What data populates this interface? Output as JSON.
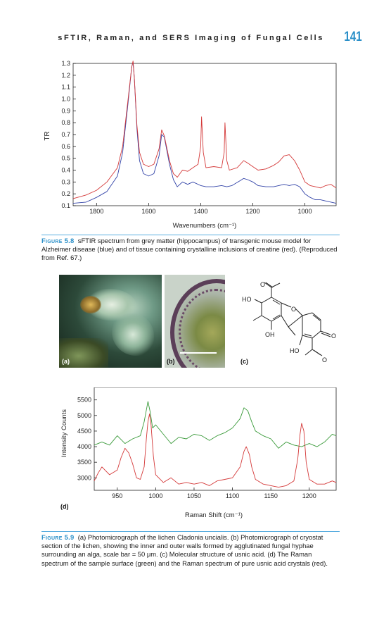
{
  "header": {
    "running_title": "sFTIR, Raman, and SERS Imaging of Fungal Cells",
    "page_number": "141"
  },
  "figure_5_8": {
    "caption_label": "Figure 5.8",
    "caption_text": "sFTIR spectrum from grey matter (hippocampus) of transgenic mouse model for Alzheimer disease (blue) and of tissue containing crystalline inclusions of creatine (red). (Reproduced from Ref. 67.)",
    "chart_data": {
      "type": "line",
      "xlabel": "Wavenumbers (cm⁻¹)",
      "ylabel": "TR",
      "xlim": [
        1890,
        880
      ],
      "ylim": [
        0.1,
        1.3
      ],
      "x_ticks": [
        "1800",
        "1600",
        "1400",
        "1200",
        "1000"
      ],
      "y_ticks": [
        "0.1",
        "0.2",
        "0.3",
        "0.4",
        "0.5",
        "0.6",
        "0.7",
        "0.8",
        "0.9",
        "1.0",
        "1.1",
        "1.2",
        "1.3"
      ],
      "series": [
        {
          "color": "#3344a8",
          "x": [
            1890,
            1840,
            1800,
            1760,
            1720,
            1700,
            1680,
            1665,
            1660,
            1655,
            1645,
            1635,
            1620,
            1600,
            1580,
            1560,
            1550,
            1540,
            1520,
            1505,
            1490,
            1470,
            1450,
            1430,
            1400,
            1380,
            1350,
            1320,
            1300,
            1280,
            1250,
            1235,
            1220,
            1200,
            1180,
            1150,
            1120,
            1100,
            1080,
            1060,
            1040,
            1020,
            1000,
            980,
            960,
            940,
            920,
            900,
            880
          ],
          "y": [
            0.12,
            0.13,
            0.17,
            0.22,
            0.35,
            0.55,
            0.95,
            1.27,
            1.31,
            1.18,
            0.75,
            0.48,
            0.37,
            0.35,
            0.37,
            0.52,
            0.7,
            0.68,
            0.45,
            0.32,
            0.26,
            0.3,
            0.28,
            0.3,
            0.27,
            0.26,
            0.26,
            0.27,
            0.26,
            0.27,
            0.31,
            0.33,
            0.32,
            0.3,
            0.27,
            0.26,
            0.26,
            0.27,
            0.28,
            0.27,
            0.28,
            0.26,
            0.2,
            0.17,
            0.15,
            0.15,
            0.14,
            0.13,
            0.12
          ]
        },
        {
          "color": "#d43838",
          "x": [
            1890,
            1840,
            1800,
            1760,
            1720,
            1700,
            1680,
            1665,
            1660,
            1655,
            1645,
            1635,
            1620,
            1600,
            1580,
            1560,
            1550,
            1540,
            1520,
            1505,
            1490,
            1470,
            1450,
            1430,
            1410,
            1400,
            1397,
            1390,
            1380,
            1350,
            1320,
            1310,
            1307,
            1300,
            1290,
            1260,
            1235,
            1220,
            1200,
            1180,
            1150,
            1120,
            1100,
            1080,
            1060,
            1040,
            1020,
            1000,
            980,
            960,
            940,
            920,
            900,
            880
          ],
          "y": [
            0.16,
            0.19,
            0.23,
            0.3,
            0.42,
            0.6,
            0.98,
            1.27,
            1.32,
            1.18,
            0.78,
            0.55,
            0.45,
            0.43,
            0.45,
            0.58,
            0.74,
            0.69,
            0.48,
            0.37,
            0.34,
            0.4,
            0.39,
            0.42,
            0.45,
            0.6,
            0.85,
            0.55,
            0.42,
            0.43,
            0.42,
            0.55,
            0.8,
            0.48,
            0.4,
            0.42,
            0.48,
            0.46,
            0.43,
            0.4,
            0.41,
            0.44,
            0.47,
            0.52,
            0.53,
            0.48,
            0.4,
            0.3,
            0.27,
            0.26,
            0.25,
            0.27,
            0.28,
            0.25
          ]
        }
      ]
    }
  },
  "figure_5_9": {
    "panel_labels": [
      "(a)",
      "(b)",
      "(c)",
      "(d)"
    ],
    "molecule_labels": {
      "o_top": "O",
      "ho_left": "HO",
      "o_ring": "O",
      "o_right": "O",
      "oh_bottom": "OH",
      "ho_bottom": "HO",
      "o_bottom_right": "O"
    },
    "caption_label": "Figure 5.9",
    "caption_text": "(a) Photomicrograph of the lichen Cladonia uncialis. (b) Photomicrograph of cryostat section of the lichen, showing the inner and outer walls formed by agglutinated fungal hyphae surrounding an alga, scale bar = 50 μm. (c) Molecular structure of usnic acid. (d) The Raman spectrum of the sample surface (green) and the Raman spectrum of pure usnic acid crystals (red).",
    "chart_data": {
      "type": "line",
      "xlabel": "Raman Shift (cm⁻¹)",
      "ylabel": "Intensity Counts",
      "xlim": [
        920,
        1235
      ],
      "ylim": [
        2600,
        5900
      ],
      "x_ticks": [
        "950",
        "1000",
        "1050",
        "1100",
        "1150",
        "1200"
      ],
      "y_ticks": [
        "3000",
        "3500",
        "4000",
        "4500",
        "5000",
        "5500"
      ],
      "series": [
        {
          "color": "#3a9a3a",
          "x": [
            920,
            930,
            940,
            950,
            960,
            970,
            980,
            985,
            990,
            993,
            996,
            1000,
            1010,
            1020,
            1030,
            1040,
            1050,
            1060,
            1070,
            1080,
            1090,
            1100,
            1110,
            1115,
            1120,
            1125,
            1130,
            1140,
            1150,
            1160,
            1170,
            1180,
            1190,
            1195,
            1200,
            1210,
            1220,
            1230,
            1235
          ],
          "y": [
            4050,
            4150,
            4050,
            4350,
            4100,
            4250,
            4350,
            4800,
            5450,
            5100,
            4600,
            4700,
            4400,
            4100,
            4300,
            4250,
            4400,
            4350,
            4200,
            4350,
            4450,
            4600,
            4900,
            5250,
            5150,
            4800,
            4500,
            4350,
            4250,
            3950,
            4150,
            4050,
            4000,
            4050,
            4100,
            4000,
            4150,
            4400,
            4350
          ]
        },
        {
          "color": "#d43838",
          "x": [
            920,
            925,
            930,
            940,
            950,
            955,
            960,
            965,
            970,
            975,
            980,
            985,
            988,
            990,
            992,
            994,
            997,
            1000,
            1010,
            1020,
            1030,
            1040,
            1050,
            1060,
            1070,
            1080,
            1090,
            1100,
            1110,
            1115,
            1118,
            1122,
            1125,
            1130,
            1140,
            1150,
            1160,
            1170,
            1180,
            1185,
            1188,
            1190,
            1193,
            1196,
            1200,
            1210,
            1220,
            1230,
            1235
          ],
          "y": [
            2900,
            3150,
            3350,
            3100,
            3250,
            3650,
            3950,
            3800,
            3450,
            3000,
            2950,
            3350,
            4300,
            4800,
            5050,
            4700,
            3700,
            3100,
            2850,
            3000,
            2800,
            2850,
            2800,
            2850,
            2750,
            2900,
            2950,
            3000,
            3350,
            3850,
            4000,
            3750,
            3350,
            2950,
            2800,
            2750,
            2700,
            2750,
            2900,
            3600,
            4400,
            4750,
            4500,
            3500,
            2950,
            2800,
            2800,
            2900,
            2850
          ]
        }
      ]
    }
  }
}
